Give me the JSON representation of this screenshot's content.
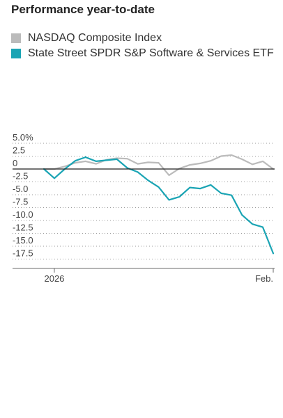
{
  "title": "Performance year-to-date",
  "legend": [
    {
      "label": "NASDAQ Composite Index",
      "color": "#bbbbbb"
    },
    {
      "label": "State Street SPDR S&P Software & Services ETF",
      "color": "#1aa4b4"
    }
  ],
  "chart_data": {
    "type": "line",
    "title": "Performance year-to-date",
    "y_tick_labels": [
      "5.0%",
      "2.5",
      "0",
      "-2.5",
      "-5.0",
      "-7.5",
      "-10.0",
      "-12.5",
      "-15.0",
      "-17.5"
    ],
    "y_ticks": [
      5.0,
      2.5,
      0,
      -2.5,
      -5.0,
      -7.5,
      -10.0,
      -12.5,
      -15.0,
      -17.5
    ],
    "ylim": [
      -18.5,
      5.5
    ],
    "x_tick_labels": [
      "2026",
      "Feb."
    ],
    "x_ticks": [
      1,
      22
    ],
    "xlim": [
      0,
      22
    ],
    "grid": "horizontal dotted",
    "zero_line": true,
    "series": [
      {
        "name": "NASDAQ Composite Index",
        "color": "#bbbbbb",
        "x": [
          0,
          1,
          2,
          3,
          4,
          5,
          6,
          7,
          8,
          9,
          10,
          11,
          12,
          13,
          14,
          15,
          16,
          17,
          18,
          19,
          20,
          21,
          22
        ],
        "values": [
          0,
          0,
          0.5,
          1.2,
          1.5,
          1.0,
          1.8,
          2.1,
          2.0,
          1.0,
          1.3,
          1.2,
          -1.2,
          0.1,
          0.8,
          1.1,
          1.6,
          2.5,
          2.7,
          1.9,
          0.9,
          1.5,
          0
        ]
      },
      {
        "name": "State Street SPDR S&P Software & Services ETF",
        "color": "#1aa4b4",
        "x": [
          0,
          1,
          2,
          3,
          4,
          5,
          6,
          7,
          8,
          9,
          10,
          11,
          12,
          13,
          14,
          15,
          16,
          17,
          18,
          19,
          20,
          21,
          22
        ],
        "values": [
          0,
          -1.8,
          0,
          1.6,
          2.3,
          1.5,
          1.7,
          1.9,
          0.2,
          -0.6,
          -2.2,
          -3.5,
          -6.0,
          -5.4,
          -3.6,
          -3.8,
          -3.1,
          -4.7,
          -5.1,
          -8.9,
          -10.7,
          -11.3,
          -16.4
        ]
      }
    ]
  }
}
